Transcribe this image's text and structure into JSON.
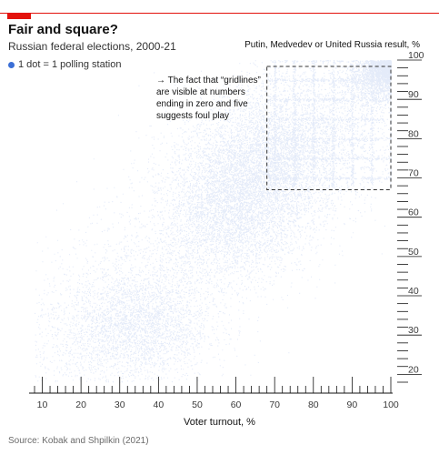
{
  "chart_data": {
    "type": "scatter",
    "title": "Fair and square?",
    "subtitle": "Russian federal elections, 2000-21",
    "xlabel": "Voter turnout, %",
    "ylabel": "Putin, Medvedev or United Russia result, %",
    "legend": "1 dot = 1 polling station",
    "annotation": "→ The fact that “gridlines” are visible at numbers ending in zero and five suggests foul play",
    "source": "Source: Kobak and Shpilkin (2021)",
    "xlim": [
      8,
      100
    ],
    "ylim": [
      18,
      100
    ],
    "xticks": [
      10,
      20,
      30,
      40,
      50,
      60,
      70,
      80,
      90,
      100
    ],
    "yticks": [
      20,
      30,
      40,
      50,
      60,
      70,
      80,
      90,
      100
    ],
    "highlight_box": {
      "x": [
        68,
        100
      ],
      "y": [
        67,
        100
      ]
    },
    "clusters": [
      {
        "center": [
          35,
          32
        ],
        "spread": [
          9,
          7
        ]
      },
      {
        "center": [
          60,
          65
        ],
        "spread": [
          9,
          10
        ]
      },
      {
        "center": [
          72,
          78
        ],
        "spread": [
          10,
          9
        ]
      },
      {
        "center": [
          96,
          96
        ],
        "spread": [
          4,
          4
        ]
      }
    ],
    "colors": {
      "dots": "#2f67d4",
      "accent": "#e3120b",
      "box": "#333333"
    }
  }
}
